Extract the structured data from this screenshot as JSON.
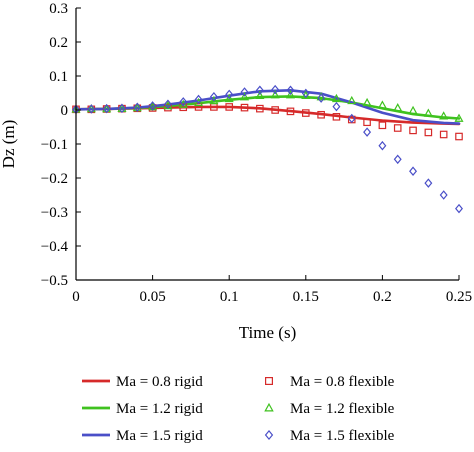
{
  "chart_data": {
    "type": "line",
    "title": "",
    "xlabel": "Time (s)",
    "ylabel": "Dz (m)",
    "xlim": [
      0,
      0.25
    ],
    "ylim": [
      -0.5,
      0.3
    ],
    "xticks": [
      0,
      0.05,
      0.1,
      0.15,
      0.2,
      0.25
    ],
    "yticks": [
      0.3,
      0.2,
      0.1,
      0,
      -0.1,
      -0.2,
      -0.3,
      -0.4,
      -0.5
    ],
    "x_tick_labels": [
      "0",
      "0.05",
      "0.1",
      "0.15",
      "0.2",
      "0.25"
    ],
    "y_tick_labels": [
      "0.3",
      "0.2",
      "0.1",
      "0",
      "−0.1",
      "−0.2",
      "−0.3",
      "−0.4",
      "−0.5"
    ],
    "grid": false,
    "legend_position": "bottom",
    "series": [
      {
        "name": "Ma = 0.8 rigid",
        "style": "line",
        "color": "#d62a2a",
        "x": [
          0,
          0.02,
          0.04,
          0.06,
          0.08,
          0.1,
          0.12,
          0.14,
          0.16,
          0.18,
          0.2,
          0.22,
          0.24,
          0.25
        ],
        "y": [
          0.002,
          0.003,
          0.005,
          0.007,
          0.009,
          0.009,
          0.005,
          -0.003,
          -0.012,
          -0.022,
          -0.031,
          -0.037,
          -0.04,
          -0.041
        ]
      },
      {
        "name": "Ma = 1.2 rigid",
        "style": "line",
        "color": "#3fc21f",
        "x": [
          0,
          0.02,
          0.04,
          0.06,
          0.08,
          0.1,
          0.12,
          0.14,
          0.16,
          0.18,
          0.2,
          0.22,
          0.24,
          0.25
        ],
        "y": [
          0.002,
          0.003,
          0.006,
          0.012,
          0.02,
          0.03,
          0.038,
          0.04,
          0.035,
          0.022,
          0.005,
          -0.012,
          -0.022,
          -0.025
        ]
      },
      {
        "name": "Ma = 1.5 rigid",
        "style": "line",
        "color": "#4a4fc8",
        "x": [
          0,
          0.02,
          0.04,
          0.06,
          0.08,
          0.1,
          0.12,
          0.14,
          0.16,
          0.18,
          0.2,
          0.22,
          0.24,
          0.25
        ],
        "y": [
          0.002,
          0.003,
          0.007,
          0.016,
          0.028,
          0.042,
          0.055,
          0.058,
          0.048,
          0.022,
          -0.008,
          -0.03,
          -0.038,
          -0.04
        ]
      },
      {
        "name": "Ma = 0.8 flexible",
        "style": "marker",
        "marker": "square",
        "color": "#d62a2a",
        "x": [
          0,
          0.01,
          0.02,
          0.03,
          0.04,
          0.05,
          0.06,
          0.07,
          0.08,
          0.09,
          0.1,
          0.11,
          0.12,
          0.13,
          0.14,
          0.15,
          0.16,
          0.17,
          0.18,
          0.19,
          0.2,
          0.21,
          0.22,
          0.23,
          0.24,
          0.25
        ],
        "y": [
          0.002,
          0.002,
          0.003,
          0.004,
          0.005,
          0.006,
          0.007,
          0.008,
          0.009,
          0.009,
          0.009,
          0.007,
          0.004,
          0.0,
          -0.004,
          -0.009,
          -0.014,
          -0.02,
          -0.028,
          -0.036,
          -0.045,
          -0.053,
          -0.06,
          -0.066,
          -0.072,
          -0.078
        ]
      },
      {
        "name": "Ma = 1.2 flexible",
        "style": "marker",
        "marker": "triangle",
        "color": "#3fc21f",
        "x": [
          0,
          0.01,
          0.02,
          0.03,
          0.04,
          0.05,
          0.06,
          0.07,
          0.08,
          0.09,
          0.1,
          0.11,
          0.12,
          0.13,
          0.14,
          0.15,
          0.16,
          0.17,
          0.18,
          0.19,
          0.2,
          0.21,
          0.22,
          0.23,
          0.24,
          0.25
        ],
        "y": [
          0.002,
          0.003,
          0.003,
          0.004,
          0.006,
          0.009,
          0.012,
          0.016,
          0.021,
          0.027,
          0.033,
          0.038,
          0.042,
          0.044,
          0.044,
          0.042,
          0.038,
          0.033,
          0.027,
          0.021,
          0.014,
          0.006,
          -0.002,
          -0.01,
          -0.018,
          -0.025
        ]
      },
      {
        "name": "Ma = 1.5 flexible",
        "style": "marker",
        "marker": "diamond",
        "color": "#4a4fc8",
        "x": [
          0,
          0.01,
          0.02,
          0.03,
          0.04,
          0.05,
          0.06,
          0.07,
          0.08,
          0.09,
          0.1,
          0.11,
          0.12,
          0.13,
          0.14,
          0.15,
          0.16,
          0.17,
          0.18,
          0.19,
          0.2,
          0.21,
          0.22,
          0.23,
          0.24,
          0.25
        ],
        "y": [
          0.002,
          0.003,
          0.004,
          0.005,
          0.008,
          0.012,
          0.017,
          0.024,
          0.031,
          0.039,
          0.046,
          0.053,
          0.058,
          0.06,
          0.058,
          0.049,
          0.035,
          0.01,
          -0.025,
          -0.065,
          -0.105,
          -0.145,
          -0.18,
          -0.215,
          -0.25,
          -0.29
        ]
      }
    ]
  }
}
